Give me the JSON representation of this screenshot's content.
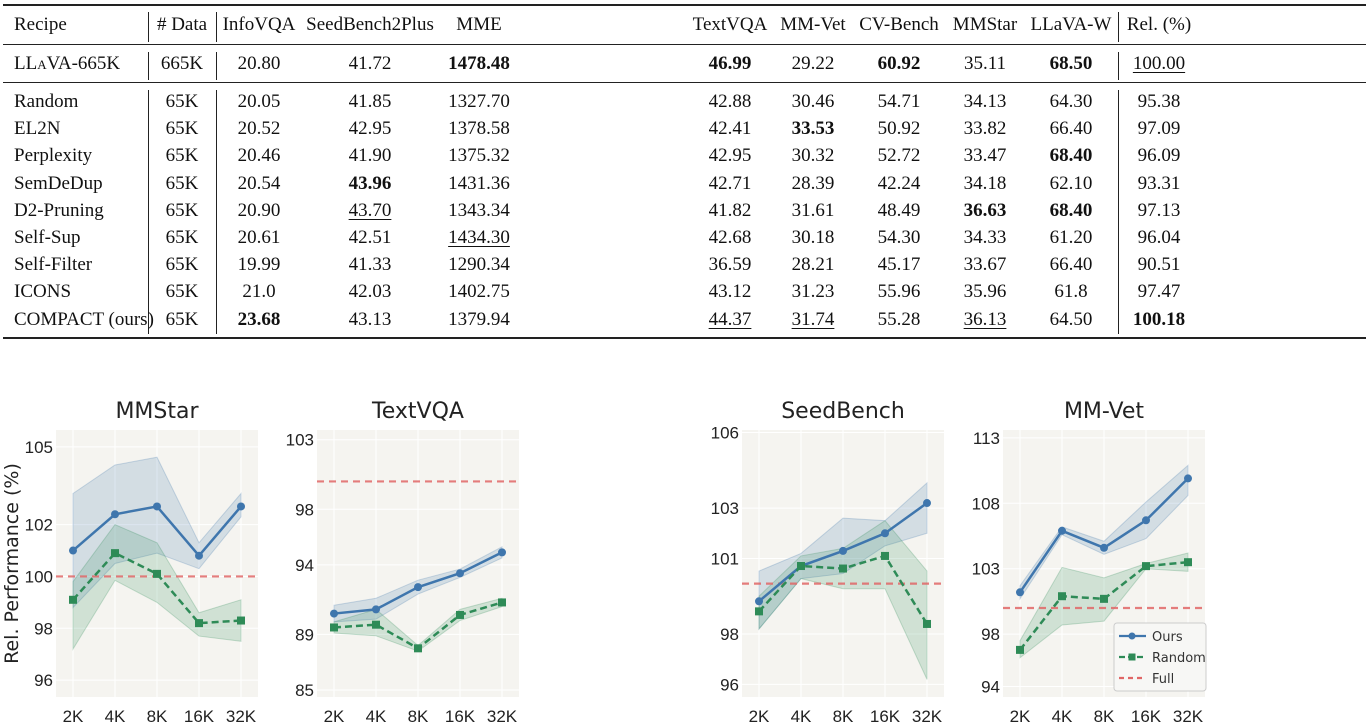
{
  "table": {
    "headers": [
      "Recipe",
      "# Data",
      "InfoVQA",
      "SeedBench2Plus",
      "MME",
      "TextVQA",
      "MM-Vet",
      "CV-Bench",
      "MMStar",
      "LLaVA-W",
      "Rel. (%)"
    ],
    "baseline": {
      "cells": [
        "LLaVA-665K",
        "665K",
        "20.80",
        "41.72",
        "1478.48",
        "46.99",
        "29.22",
        "60.92",
        "35.11",
        "68.50",
        "100.00"
      ],
      "styles": [
        "",
        "",
        "",
        "",
        "b",
        "b",
        "",
        "b",
        "",
        "b",
        "u"
      ]
    },
    "rows": [
      {
        "cells": [
          "Random",
          "65K",
          "20.05",
          "41.85",
          "1327.70",
          "42.88",
          "30.46",
          "54.71",
          "34.13",
          "64.30",
          "95.38"
        ],
        "styles": [
          "",
          "",
          "",
          "",
          "",
          "",
          "",
          "",
          "",
          "",
          ""
        ]
      },
      {
        "cells": [
          "EL2N",
          "65K",
          "20.52",
          "42.95",
          "1378.58",
          "42.41",
          "33.53",
          "50.92",
          "33.82",
          "66.40",
          "97.09"
        ],
        "styles": [
          "",
          "",
          "",
          "",
          "",
          "",
          "b",
          "",
          "",
          "",
          ""
        ]
      },
      {
        "cells": [
          "Perplexity",
          "65K",
          "20.46",
          "41.90",
          "1375.32",
          "42.95",
          "30.32",
          "52.72",
          "33.47",
          "68.40",
          "96.09"
        ],
        "styles": [
          "",
          "",
          "",
          "",
          "",
          "",
          "",
          "",
          "",
          "b",
          ""
        ]
      },
      {
        "cells": [
          "SemDeDup",
          "65K",
          "20.54",
          "43.96",
          "1431.36",
          "42.71",
          "28.39",
          "42.24",
          "34.18",
          "62.10",
          "93.31"
        ],
        "styles": [
          "",
          "",
          "",
          "b",
          "",
          "",
          "",
          "",
          "",
          "",
          ""
        ]
      },
      {
        "cells": [
          "D2-Pruning",
          "65K",
          "20.90",
          "43.70",
          "1343.34",
          "41.82",
          "31.61",
          "48.49",
          "36.63",
          "68.40",
          "97.13"
        ],
        "styles": [
          "",
          "",
          "",
          "u",
          "",
          "",
          "",
          "",
          "b",
          "b",
          ""
        ]
      },
      {
        "cells": [
          "Self-Sup",
          "65K",
          "20.61",
          "42.51",
          "1434.30",
          "42.68",
          "30.18",
          "54.30",
          "34.33",
          "61.20",
          "96.04"
        ],
        "styles": [
          "",
          "",
          "",
          "",
          "u",
          "",
          "",
          "",
          "",
          "",
          ""
        ]
      },
      {
        "cells": [
          "Self-Filter",
          "65K",
          "19.99",
          "41.33",
          "1290.34",
          "36.59",
          "28.21",
          "45.17",
          "33.67",
          "66.40",
          "90.51"
        ],
        "styles": [
          "",
          "",
          "",
          "",
          "",
          "",
          "",
          "",
          "",
          "",
          ""
        ]
      },
      {
        "cells": [
          "ICONS",
          "65K",
          "21.0",
          "42.03",
          "1402.75",
          "43.12",
          "31.23",
          "55.96",
          "35.96",
          "61.8",
          "97.47"
        ],
        "styles": [
          "",
          "",
          "",
          "",
          "",
          "",
          "",
          "",
          "",
          "",
          ""
        ]
      },
      {
        "cells": [
          "COMPACT (ours)",
          "65K",
          "23.68",
          "43.13",
          "1379.94",
          "44.37",
          "31.74",
          "55.28",
          "36.13",
          "64.50",
          "100.18"
        ],
        "styles": [
          "",
          "",
          "b",
          "",
          "",
          "u",
          "u",
          "",
          "u",
          "",
          "b"
        ]
      }
    ]
  },
  "colors": {
    "ours": "#3f76ad",
    "random": "#2e8b57",
    "full": "#e06666",
    "plot_bg": "#f5f4f0"
  },
  "chart_data": [
    {
      "type": "line",
      "title": "MMStar",
      "ylabel": "Rel. Performance (%)",
      "categories": [
        "2K",
        "4K",
        "8K",
        "16K",
        "32K"
      ],
      "yticks": [
        96,
        98,
        100,
        102,
        105
      ],
      "ylim": [
        95.35,
        105.65
      ],
      "full": 100,
      "series": [
        {
          "name": "Ours",
          "values": [
            101.0,
            102.4,
            102.7,
            100.8,
            102.7
          ],
          "upper": [
            103.2,
            104.3,
            104.6,
            101.3,
            103.2
          ],
          "lower": [
            98.8,
            100.5,
            100.9,
            100.3,
            102.3
          ]
        },
        {
          "name": "Random",
          "values": [
            99.1,
            100.9,
            100.1,
            98.2,
            98.3
          ],
          "upper": [
            99.8,
            102.0,
            101.3,
            98.6,
            99.1
          ],
          "lower": [
            97.2,
            99.85,
            99.0,
            97.7,
            97.5
          ]
        }
      ]
    },
    {
      "type": "line",
      "title": "TextVQA",
      "ylabel": "",
      "categories": [
        "2K",
        "4K",
        "8K",
        "16K",
        "32K"
      ],
      "yticks": [
        85,
        89,
        94,
        98,
        103
      ],
      "ylim": [
        84.5,
        103.7
      ],
      "full": 100,
      "series": [
        {
          "name": "Ours",
          "values": [
            90.5,
            90.8,
            92.4,
            93.4,
            94.9
          ],
          "upper": [
            91.1,
            91.6,
            92.9,
            93.7,
            95.3
          ],
          "lower": [
            89.9,
            90.1,
            91.9,
            93.1,
            94.5
          ]
        },
        {
          "name": "Random",
          "values": [
            89.5,
            89.7,
            88.0,
            90.4,
            91.3
          ],
          "upper": [
            89.9,
            90.8,
            88.2,
            90.8,
            91.6
          ],
          "lower": [
            89.1,
            88.9,
            87.8,
            90.0,
            91.0
          ]
        }
      ]
    },
    {
      "type": "line",
      "title": "SeedBench",
      "ylabel": "",
      "categories": [
        "2K",
        "4K",
        "8K",
        "16K",
        "32K"
      ],
      "yticks": [
        96,
        98,
        101,
        103,
        106
      ],
      "ylim": [
        95.5,
        106.1
      ],
      "full": 100,
      "series": [
        {
          "name": "Ours",
          "values": [
            99.3,
            100.7,
            101.3,
            102.0,
            103.2
          ],
          "upper": [
            100.5,
            101.2,
            102.6,
            102.5,
            104.0
          ],
          "lower": [
            98.2,
            100.2,
            100.4,
            101.5,
            102.0
          ]
        },
        {
          "name": "Random",
          "values": [
            98.9,
            100.7,
            100.6,
            101.1,
            98.4
          ],
          "upper": [
            99.5,
            101.1,
            101.4,
            102.5,
            100.5
          ],
          "lower": [
            98.2,
            100.2,
            99.8,
            99.8,
            96.2
          ]
        }
      ]
    },
    {
      "type": "line",
      "title": "MM-Vet",
      "ylabel": "",
      "categories": [
        "2K",
        "4K",
        "8K",
        "16K",
        "32K"
      ],
      "yticks": [
        94,
        98,
        103,
        108,
        113
      ],
      "ylim": [
        93.2,
        113.6
      ],
      "full": 100,
      "legend": {
        "placement": "bottom-right",
        "entries": [
          "Ours",
          "Random",
          "Full"
        ]
      },
      "series": [
        {
          "name": "Ours",
          "values": [
            101.2,
            105.9,
            104.6,
            106.7,
            109.9
          ],
          "upper": [
            101.7,
            106.2,
            105.1,
            108.1,
            110.9
          ],
          "lower": [
            100.7,
            105.6,
            104.1,
            105.3,
            108.6
          ]
        },
        {
          "name": "Random",
          "values": [
            96.8,
            100.9,
            100.7,
            103.2,
            103.5
          ],
          "upper": [
            97.5,
            103.1,
            102.3,
            103.4,
            104.2
          ],
          "lower": [
            96.2,
            98.7,
            99.0,
            103.0,
            102.8
          ]
        }
      ]
    }
  ]
}
